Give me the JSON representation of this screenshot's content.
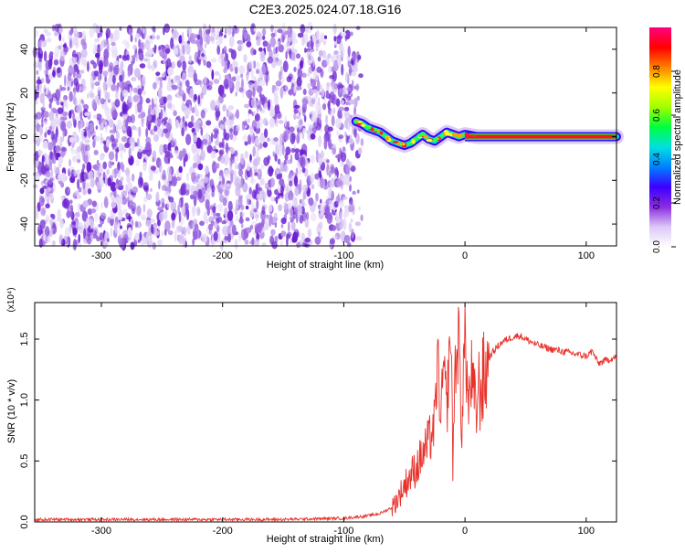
{
  "figure": {
    "title": "C2E3.2025.024.07.18.G16"
  },
  "chart_data": [
    {
      "type": "heatmap",
      "xlabel": "Height of straight line (km)",
      "ylabel": "Frequency (Hz)",
      "xlim": [
        -355,
        125
      ],
      "ylim": [
        -50,
        50
      ],
      "xticks": [
        -300,
        -200,
        -100,
        0,
        100
      ],
      "yticks": [
        -40,
        -20,
        0,
        20,
        40
      ],
      "noise_region": {
        "x": [
          -355,
          -95
        ],
        "y": [
          -50,
          50
        ]
      },
      "signal_track": [
        [
          -90,
          7
        ],
        [
          -85,
          6
        ],
        [
          -80,
          4
        ],
        [
          -75,
          3
        ],
        [
          -70,
          2
        ],
        [
          -65,
          0
        ],
        [
          -60,
          -2
        ],
        [
          -55,
          -3
        ],
        [
          -50,
          -4
        ],
        [
          -45,
          -3
        ],
        [
          -40,
          -1
        ],
        [
          -35,
          1
        ],
        [
          -30,
          -1
        ],
        [
          -25,
          -2
        ],
        [
          -20,
          0
        ],
        [
          -15,
          2
        ],
        [
          -10,
          1
        ],
        [
          -5,
          0
        ],
        [
          0,
          1
        ],
        [
          10,
          0
        ],
        [
          125,
          0
        ]
      ],
      "colorbar": {
        "label": "Normalized spectral amplitude",
        "range": [
          0.0,
          1.0
        ],
        "ticks": [
          "0.0",
          "0.2",
          "0.4",
          "0.6",
          "0.8"
        ],
        "colormap": [
          "#ffffff",
          "#dcc8f5",
          "#8a2be2",
          "#3b00ff",
          "#0080ff",
          "#00e0e0",
          "#00ff40",
          "#a0ff00",
          "#ffff00",
          "#ff8000",
          "#ff0000",
          "#ff0080"
        ]
      },
      "grid": false
    },
    {
      "type": "line",
      "xlabel": "Height of straight line (km)",
      "ylabel": "SNR (10 * v/v)",
      "multiplier": "(x10⁴)",
      "xlim": [
        -355,
        125
      ],
      "ylim": [
        0,
        1.8
      ],
      "xticks": [
        -300,
        -200,
        -100,
        0,
        100
      ],
      "yticks": [
        "0.0",
        "0.5",
        "1.0",
        "1.5"
      ],
      "series": [
        {
          "color": "#e8312a",
          "x": [
            -355,
            -300,
            -200,
            -150,
            -100,
            -80,
            -70,
            -60,
            -55,
            -50,
            -45,
            -40,
            -35,
            -30,
            -25,
            -22,
            -20,
            -18,
            -15,
            -12,
            -10,
            -8,
            -5,
            -3,
            0,
            3,
            5,
            8,
            10,
            12,
            15,
            18,
            20,
            25,
            30,
            35,
            40,
            45,
            50,
            60,
            70,
            80,
            90,
            100,
            105,
            110,
            115,
            120,
            125
          ],
          "y": [
            0.02,
            0.02,
            0.02,
            0.02,
            0.03,
            0.05,
            0.07,
            0.12,
            0.2,
            0.3,
            0.38,
            0.45,
            0.55,
            0.65,
            0.8,
            1.4,
            0.7,
            1.3,
            0.9,
            1.6,
            0.6,
            1.25,
            1.5,
            0.8,
            1.55,
            0.9,
            1.2,
            0.9,
            1.0,
            1.1,
            1.15,
            1.25,
            1.35,
            1.42,
            1.47,
            1.5,
            1.52,
            1.53,
            1.5,
            1.45,
            1.42,
            1.4,
            1.38,
            1.36,
            1.4,
            1.3,
            1.32,
            1.34,
            1.35
          ]
        }
      ],
      "grid": false
    }
  ]
}
